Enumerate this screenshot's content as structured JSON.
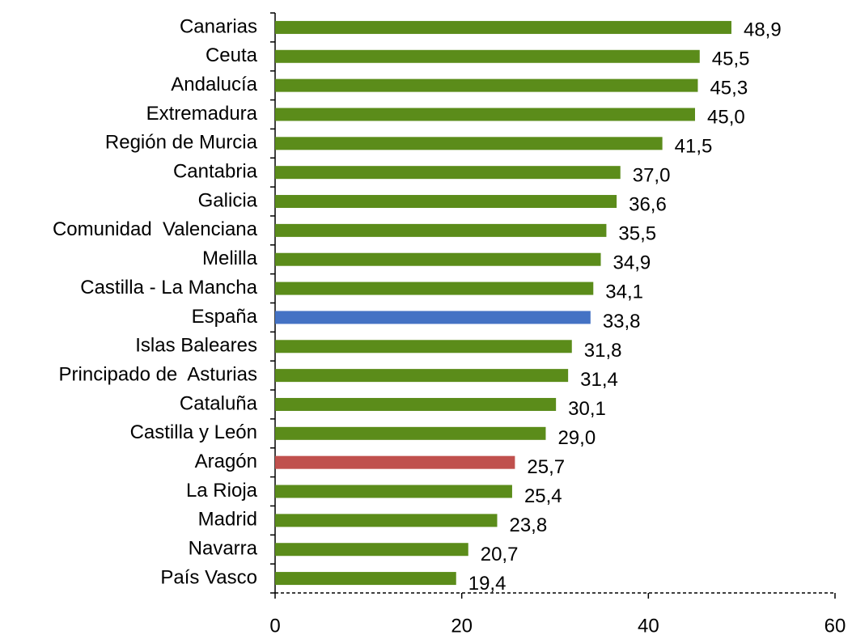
{
  "chart_data": {
    "type": "bar",
    "orientation": "horizontal",
    "categories": [
      "Canarias",
      "Ceuta",
      "Andalucía",
      "Extremadura",
      "Región de Murcia",
      "Cantabria",
      "Galicia",
      "Comunidad  Valenciana",
      "Melilla",
      "Castilla - La Mancha",
      "España",
      "Islas Baleares",
      "Principado de  Asturias",
      "Cataluña",
      "Castilla y León",
      "Aragón",
      "La Rioja",
      "Madrid",
      "Navarra",
      "País Vasco"
    ],
    "values": [
      48.9,
      45.5,
      45.3,
      45.0,
      41.5,
      37.0,
      36.6,
      35.5,
      34.9,
      34.1,
      33.8,
      31.8,
      31.4,
      30.1,
      29.0,
      25.7,
      25.4,
      23.8,
      20.7,
      19.4
    ],
    "value_labels": [
      "48,9",
      "45,5",
      "45,3",
      "45,0",
      "41,5",
      "37,0",
      "36,6",
      "35,5",
      "34,9",
      "34,1",
      "33,8",
      "31,8",
      "31,4",
      "30,1",
      "29,0",
      "25,7",
      "25,4",
      "23,8",
      "20,7",
      "19,4"
    ],
    "colors": [
      "#5b8c1a",
      "#5b8c1a",
      "#5b8c1a",
      "#5b8c1a",
      "#5b8c1a",
      "#5b8c1a",
      "#5b8c1a",
      "#5b8c1a",
      "#5b8c1a",
      "#5b8c1a",
      "#4472c4",
      "#5b8c1a",
      "#5b8c1a",
      "#5b8c1a",
      "#5b8c1a",
      "#c0504d",
      "#5b8c1a",
      "#5b8c1a",
      "#5b8c1a",
      "#5b8c1a"
    ],
    "xlim": [
      0,
      60
    ],
    "xticks": [
      0,
      20,
      40,
      60
    ]
  }
}
